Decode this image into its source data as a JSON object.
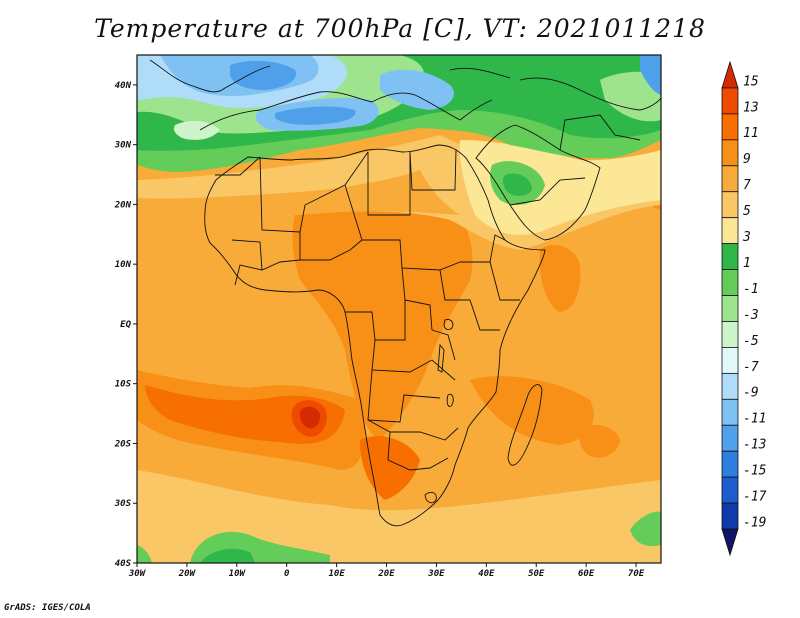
{
  "title": "Temperature at 700hPa [C], VT: 2021011218",
  "credit": "GrADS: IGES/COLA",
  "x_ticks": [
    "30W",
    "20W",
    "10W",
    "0",
    "10E",
    "20E",
    "30E",
    "40E",
    "50E",
    "60E",
    "70E"
  ],
  "y_ticks": [
    "40N",
    "30N",
    "20N",
    "10N",
    "EQ",
    "10S",
    "20S",
    "30S",
    "40S"
  ],
  "colorbar": {
    "labels": [
      "15",
      "13",
      "11",
      "9",
      "7",
      "5",
      "3",
      "1",
      "-1",
      "-3",
      "-5",
      "-7",
      "-9",
      "-11",
      "-13",
      "-15",
      "-17",
      "-19"
    ],
    "colors": [
      "#d42b00",
      "#ee4a00",
      "#f76f00",
      "#f88f16",
      "#f9ab3a",
      "#fac767",
      "#fbe795",
      "#2fb74a",
      "#64cc58",
      "#9ee48f",
      "#cef4cc",
      "#e3f8fb",
      "#aedcf9",
      "#7fc1f3",
      "#4fa0ea",
      "#2d7fdf",
      "#1d5ccd",
      "#0f3aaa",
      "#101566"
    ]
  },
  "map": {
    "lon_range": [
      -30,
      75
    ],
    "lat_range": [
      -40,
      45
    ],
    "coast_color": "#111111"
  }
}
